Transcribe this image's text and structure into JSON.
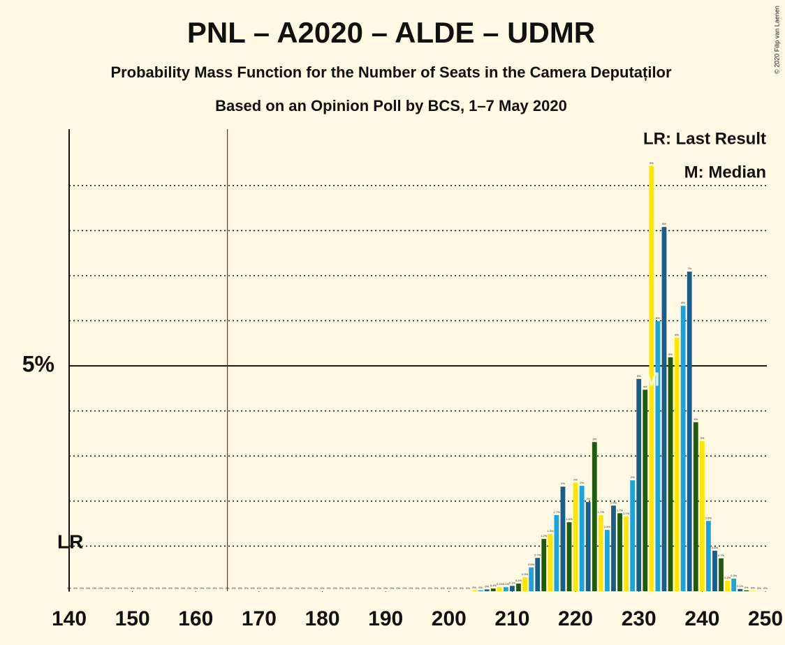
{
  "chart_data": {
    "type": "bar",
    "title": "PNL – A2020 – ALDE – UDMR",
    "subtitle": "Probability Mass Function for the Number of Seats in the Camera Deputaților",
    "subtitle2": "Based on an Opinion Poll by BCS, 1–7 May 2020",
    "copyright": "© 2020 Filip van Laenen",
    "legend": [
      "LR: Last Result",
      "M: Median"
    ],
    "last_result": 165,
    "last_result_label": "LR",
    "median": 232,
    "median_label": "M",
    "palette": [
      "#ffe600",
      "#1aa3dd",
      "#195d8a",
      "#1e5b0e"
    ],
    "xlim": [
      140,
      250
    ],
    "xticks": [
      140,
      150,
      160,
      170,
      180,
      190,
      200,
      210,
      220,
      230,
      240,
      250
    ],
    "ylim": [
      0,
      10.25
    ],
    "yticks": [
      {
        "value": 5,
        "label": "5%"
      }
    ],
    "grid_lines": [
      1,
      2,
      3,
      4,
      6,
      7,
      8,
      9
    ],
    "x": [
      140,
      141,
      142,
      143,
      144,
      145,
      146,
      147,
      148,
      149,
      150,
      151,
      152,
      153,
      154,
      155,
      156,
      157,
      158,
      159,
      160,
      161,
      162,
      163,
      164,
      165,
      166,
      167,
      168,
      169,
      170,
      171,
      172,
      173,
      174,
      175,
      176,
      177,
      178,
      179,
      180,
      181,
      182,
      183,
      184,
      185,
      186,
      187,
      188,
      189,
      190,
      191,
      192,
      193,
      194,
      195,
      196,
      197,
      198,
      199,
      200,
      201,
      202,
      203,
      204,
      205,
      206,
      207,
      208,
      209,
      210,
      211,
      212,
      213,
      214,
      215,
      216,
      217,
      218,
      219,
      220,
      221,
      222,
      223,
      224,
      225,
      226,
      227,
      228,
      229,
      230,
      231,
      232,
      233,
      234,
      235,
      236,
      237,
      238,
      239,
      240,
      241,
      242,
      243,
      244,
      245,
      246,
      247,
      248,
      249,
      250
    ],
    "values": [
      0,
      0,
      0,
      0,
      0,
      0,
      0,
      0,
      0,
      0,
      0,
      0,
      0,
      0,
      0,
      0,
      0,
      0,
      0,
      0,
      0,
      0,
      0,
      0,
      0,
      0,
      0,
      0,
      0,
      0,
      0,
      0,
      0,
      0,
      0,
      0,
      0,
      0,
      0,
      0,
      0,
      0,
      0,
      0,
      0,
      0,
      0,
      0,
      0,
      0,
      0,
      0,
      0,
      0,
      0,
      0,
      0,
      0,
      0,
      0,
      0,
      0,
      0,
      0,
      0.02,
      0.02,
      0.04,
      0.06,
      0.09,
      0.09,
      0.12,
      0.17,
      0.31,
      0.53,
      0.74,
      1.16,
      1.27,
      1.69,
      2.32,
      1.53,
      2.41,
      2.34,
      1.98,
      3.31,
      1.69,
      1.36,
      1.9,
      1.73,
      1.66,
      2.46,
      4.71,
      4.47,
      9.43,
      5.99,
      8.08,
      5.19,
      5.62,
      6.33,
      7.09,
      3.75,
      3.33,
      1.56,
      0.9,
      0.73,
      0.23,
      0.28,
      0.05,
      0.02,
      0.01,
      0,
      0
    ],
    "value_labels": [
      "0%",
      "0%",
      "0%",
      "0%",
      "0%",
      "0%",
      "0%",
      "0%",
      "0%",
      "0%",
      "0%",
      "0%",
      "0%",
      "0%",
      "0%",
      "0%",
      "0%",
      "0%",
      "0%",
      "0%",
      "0%",
      "0%",
      "0%",
      "0%",
      "0%",
      "0%",
      "0%",
      "0%",
      "0%",
      "0%",
      "0%",
      "0%",
      "0%",
      "0%",
      "0%",
      "0%",
      "0%",
      "0%",
      "0%",
      "0%",
      "0%",
      "0%",
      "0%",
      "0%",
      "0%",
      "0%",
      "0%",
      "0%",
      "0%",
      "0%",
      "0%",
      "0%",
      "0%",
      "0%",
      "0%",
      "0%",
      "0%",
      "0%",
      "0%",
      "0%",
      "0%",
      "0%",
      "0%",
      "0%",
      "0%",
      "0%",
      "0%",
      "0.1%",
      "0.1%",
      "0.1%",
      "0.1%",
      "0.2%",
      "0.3%",
      "0.5%",
      "0.7%",
      "1.2%",
      "1.3%",
      "1.7%",
      "2%",
      "1.5%",
      "2%",
      "2%",
      "2%",
      "3%",
      "1.7%",
      "1.4%",
      "1.9%",
      "1.7%",
      "1.7%",
      "2%",
      "5%",
      "4%",
      "9%",
      "6%",
      "8%",
      "5%",
      "6%",
      "6%",
      "7%",
      "4%",
      "3%",
      "1.6%",
      "0.9%",
      "0.7%",
      "0.2%",
      "0.3%",
      "0.1%",
      "0%",
      "0%",
      "0%",
      "0%"
    ]
  }
}
